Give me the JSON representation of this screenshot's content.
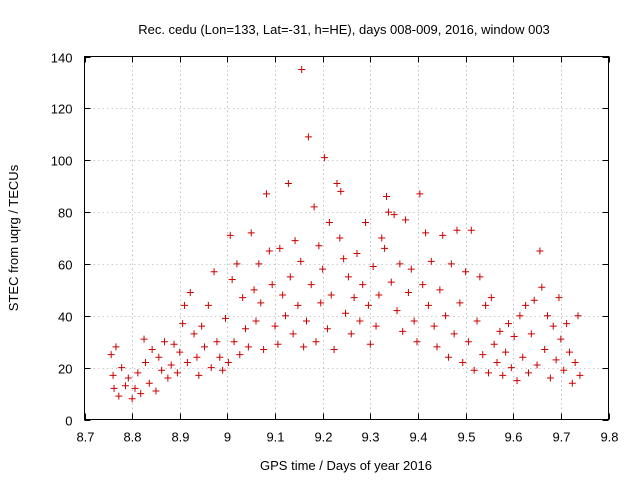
{
  "chart_data": {
    "type": "scatter",
    "title": "Rec. cedu (Lon=133, Lat=-31, h=HE), days 008-009, 2016, window 003",
    "xlabel": "GPS time / Days of year 2016",
    "ylabel": "STEC from uqrg / TECUs",
    "xlim": [
      8.7,
      9.8
    ],
    "ylim": [
      0,
      140
    ],
    "xticks": [
      8.7,
      8.8,
      8.9,
      9.0,
      9.1,
      9.2,
      9.3,
      9.4,
      9.5,
      9.6,
      9.7,
      9.8
    ],
    "xtick_labels": [
      "8.7",
      "8.8",
      "8.9",
      "9",
      "9.1",
      "9.2",
      "9.3",
      "9.4",
      "9.5",
      "9.6",
      "9.7",
      "9.8"
    ],
    "yticks": [
      0,
      20,
      40,
      60,
      80,
      100,
      120,
      140
    ],
    "ytick_labels": [
      "0",
      "20",
      "40",
      "60",
      "80",
      "100",
      "120",
      "140"
    ],
    "grid": true,
    "marker": "+",
    "color": "#cc0000",
    "series": [
      {
        "name": "STEC",
        "points": [
          [
            8.756,
            25
          ],
          [
            8.76,
            17
          ],
          [
            8.762,
            12
          ],
          [
            8.766,
            28
          ],
          [
            8.772,
            9
          ],
          [
            8.778,
            20
          ],
          [
            8.786,
            13
          ],
          [
            8.792,
            16
          ],
          [
            8.8,
            8
          ],
          [
            8.806,
            12
          ],
          [
            8.812,
            18
          ],
          [
            8.818,
            10
          ],
          [
            8.825,
            31
          ],
          [
            8.828,
            22
          ],
          [
            8.836,
            14
          ],
          [
            8.842,
            27
          ],
          [
            8.85,
            11
          ],
          [
            8.856,
            24
          ],
          [
            8.862,
            19
          ],
          [
            8.868,
            30
          ],
          [
            8.875,
            16
          ],
          [
            8.882,
            21
          ],
          [
            8.888,
            29
          ],
          [
            8.895,
            18
          ],
          [
            8.9,
            26
          ],
          [
            8.906,
            37
          ],
          [
            8.91,
            44
          ],
          [
            8.916,
            22
          ],
          [
            8.922,
            49
          ],
          [
            8.93,
            33
          ],
          [
            8.936,
            24
          ],
          [
            8.94,
            17
          ],
          [
            8.946,
            36
          ],
          [
            8.952,
            28
          ],
          [
            8.96,
            44
          ],
          [
            8.966,
            20
          ],
          [
            8.972,
            57
          ],
          [
            8.978,
            30
          ],
          [
            8.984,
            24
          ],
          [
            8.99,
            19
          ],
          [
            8.996,
            39
          ],
          [
            9.002,
            22
          ],
          [
            9.006,
            71
          ],
          [
            9.01,
            54
          ],
          [
            9.014,
            30
          ],
          [
            9.02,
            60
          ],
          [
            9.026,
            25
          ],
          [
            9.032,
            47
          ],
          [
            9.038,
            35
          ],
          [
            9.044,
            28
          ],
          [
            9.05,
            72
          ],
          [
            9.056,
            50
          ],
          [
            9.06,
            38
          ],
          [
            9.066,
            60
          ],
          [
            9.07,
            45
          ],
          [
            9.076,
            27
          ],
          [
            9.082,
            87
          ],
          [
            9.088,
            65
          ],
          [
            9.094,
            52
          ],
          [
            9.1,
            36
          ],
          [
            9.106,
            29
          ],
          [
            9.11,
            66
          ],
          [
            9.116,
            48
          ],
          [
            9.122,
            40
          ],
          [
            9.128,
            91
          ],
          [
            9.132,
            55
          ],
          [
            9.138,
            33
          ],
          [
            9.142,
            69
          ],
          [
            9.148,
            44
          ],
          [
            9.154,
            61
          ],
          [
            9.156,
            135
          ],
          [
            9.16,
            28
          ],
          [
            9.166,
            38
          ],
          [
            9.17,
            109
          ],
          [
            9.176,
            52
          ],
          [
            9.182,
            82
          ],
          [
            9.186,
            30
          ],
          [
            9.192,
            67
          ],
          [
            9.196,
            45
          ],
          [
            9.2,
            58
          ],
          [
            9.204,
            101
          ],
          [
            9.21,
            35
          ],
          [
            9.214,
            76
          ],
          [
            9.218,
            48
          ],
          [
            9.224,
            27
          ],
          [
            9.23,
            91
          ],
          [
            9.236,
            70
          ],
          [
            9.238,
            88
          ],
          [
            9.244,
            62
          ],
          [
            9.248,
            41
          ],
          [
            9.254,
            55
          ],
          [
            9.26,
            33
          ],
          [
            9.266,
            47
          ],
          [
            9.272,
            64
          ],
          [
            9.278,
            38
          ],
          [
            9.284,
            52
          ],
          [
            9.29,
            76
          ],
          [
            9.296,
            44
          ],
          [
            9.3,
            29
          ],
          [
            9.306,
            59
          ],
          [
            9.312,
            36
          ],
          [
            9.318,
            48
          ],
          [
            9.324,
            70
          ],
          [
            9.33,
            66
          ],
          [
            9.334,
            86
          ],
          [
            9.338,
            80
          ],
          [
            9.344,
            53
          ],
          [
            9.35,
            79
          ],
          [
            9.356,
            42
          ],
          [
            9.362,
            60
          ],
          [
            9.368,
            34
          ],
          [
            9.374,
            77
          ],
          [
            9.38,
            49
          ],
          [
            9.386,
            58
          ],
          [
            9.392,
            38
          ],
          [
            9.398,
            30
          ],
          [
            9.404,
            87
          ],
          [
            9.41,
            52
          ],
          [
            9.416,
            72
          ],
          [
            9.422,
            44
          ],
          [
            9.428,
            61
          ],
          [
            9.434,
            36
          ],
          [
            9.44,
            28
          ],
          [
            9.446,
            50
          ],
          [
            9.452,
            71
          ],
          [
            9.458,
            40
          ],
          [
            9.464,
            24
          ],
          [
            9.47,
            60
          ],
          [
            9.476,
            33
          ],
          [
            9.482,
            73
          ],
          [
            9.488,
            45
          ],
          [
            9.494,
            22
          ],
          [
            9.5,
            57
          ],
          [
            9.506,
            30
          ],
          [
            9.512,
            73
          ],
          [
            9.518,
            19
          ],
          [
            9.524,
            38
          ],
          [
            9.53,
            55
          ],
          [
            9.536,
            25
          ],
          [
            9.542,
            44
          ],
          [
            9.548,
            18
          ],
          [
            9.554,
            47
          ],
          [
            9.56,
            29
          ],
          [
            9.566,
            22
          ],
          [
            9.572,
            34
          ],
          [
            9.578,
            17
          ],
          [
            9.584,
            26
          ],
          [
            9.59,
            37
          ],
          [
            9.596,
            20
          ],
          [
            9.602,
            32
          ],
          [
            9.608,
            15
          ],
          [
            9.614,
            40
          ],
          [
            9.62,
            24
          ],
          [
            9.626,
            44
          ],
          [
            9.632,
            18
          ],
          [
            9.638,
            33
          ],
          [
            9.644,
            46
          ],
          [
            9.65,
            21
          ],
          [
            9.656,
            65
          ],
          [
            9.66,
            51
          ],
          [
            9.666,
            27
          ],
          [
            9.672,
            40
          ],
          [
            9.678,
            16
          ],
          [
            9.684,
            36
          ],
          [
            9.69,
            23
          ],
          [
            9.696,
            47
          ],
          [
            9.7,
            31
          ],
          [
            9.706,
            19
          ],
          [
            9.712,
            37
          ],
          [
            9.718,
            26
          ],
          [
            9.724,
            14
          ],
          [
            9.73,
            22
          ],
          [
            9.736,
            40
          ],
          [
            9.74,
            17
          ]
        ]
      }
    ]
  }
}
